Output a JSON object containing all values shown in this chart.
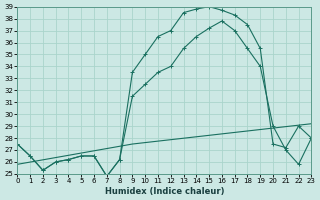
{
  "xlabel": "Humidex (Indice chaleur)",
  "bg_color": "#cce8e4",
  "grid_color": "#aad4cc",
  "line_color": "#1a7060",
  "xlim": [
    0,
    23
  ],
  "ylim": [
    25,
    39
  ],
  "xticks": [
    0,
    1,
    2,
    3,
    4,
    5,
    6,
    7,
    8,
    9,
    10,
    11,
    12,
    13,
    14,
    15,
    16,
    17,
    18,
    19,
    20,
    21,
    22,
    23
  ],
  "yticks": [
    25,
    26,
    27,
    28,
    29,
    30,
    31,
    32,
    33,
    34,
    35,
    36,
    37,
    38,
    39
  ],
  "curve1_x": [
    0,
    1,
    2,
    3,
    4,
    5,
    6,
    7,
    8,
    9,
    10,
    11,
    12,
    13,
    14,
    15,
    16,
    17,
    18,
    19,
    20,
    21,
    22,
    23
  ],
  "curve1_y": [
    27.5,
    26.5,
    25.3,
    26.0,
    26.2,
    26.5,
    26.5,
    24.8,
    26.2,
    33.5,
    35.0,
    36.5,
    37.0,
    38.5,
    38.8,
    39.0,
    38.7,
    38.3,
    37.5,
    35.5,
    27.5,
    27.2,
    29.0,
    28.0
  ],
  "curve2_x": [
    0,
    1,
    2,
    3,
    4,
    5,
    6,
    7,
    8,
    9,
    10,
    11,
    12,
    13,
    14,
    15,
    16,
    17,
    18,
    19,
    20,
    21,
    22,
    23
  ],
  "curve2_y": [
    27.5,
    26.5,
    25.3,
    26.0,
    26.2,
    26.5,
    26.5,
    24.8,
    26.2,
    31.5,
    32.5,
    33.5,
    34.0,
    35.5,
    36.5,
    37.2,
    37.8,
    37.0,
    35.5,
    34.0,
    29.0,
    27.0,
    25.8,
    28.0
  ],
  "curve3_x": [
    0,
    9,
    23
  ],
  "curve3_y": [
    25.8,
    27.5,
    29.2
  ],
  "xlabel_fontsize": 6,
  "tick_fontsize": 5
}
